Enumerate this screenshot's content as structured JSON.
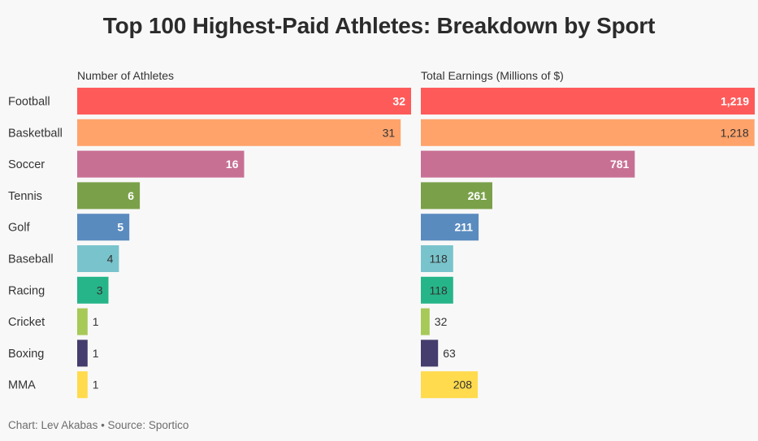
{
  "title": "Top 100 Highest-Paid Athletes: Breakdown by Sport",
  "footer": "Chart: Lev Akabas • Source: Sportico",
  "chart_data": [
    {
      "type": "bar",
      "orientation": "horizontal",
      "title": "Number of Athletes",
      "categories": [
        "Football",
        "Basketball",
        "Soccer",
        "Tennis",
        "Golf",
        "Baseball",
        "Racing",
        "Cricket",
        "Boxing",
        "MMA"
      ],
      "values": [
        32,
        31,
        16,
        6,
        5,
        4,
        3,
        1,
        1,
        1
      ],
      "value_labels": [
        "32",
        "31",
        "16",
        "6",
        "5",
        "4",
        "3",
        "1",
        "1",
        "1"
      ],
      "xlim": [
        0,
        32
      ],
      "grid": false
    },
    {
      "type": "bar",
      "orientation": "horizontal",
      "title": "Total Earnings (Millions of $)",
      "categories": [
        "Football",
        "Basketball",
        "Soccer",
        "Tennis",
        "Golf",
        "Baseball",
        "Racing",
        "Cricket",
        "Boxing",
        "MMA"
      ],
      "values": [
        1219,
        1218,
        781,
        261,
        211,
        118,
        118,
        32,
        63,
        208
      ],
      "value_labels": [
        "1,219",
        "1,218",
        "781",
        "261",
        "211",
        "118",
        "118",
        "32",
        "63",
        "208"
      ],
      "xlim": [
        0,
        1219
      ],
      "grid": false
    }
  ],
  "colors": [
    "#ff5a5a",
    "#ffa36b",
    "#c87094",
    "#7aa14a",
    "#5a8bbf",
    "#79c4cc",
    "#26b589",
    "#a7c957",
    "#453d6d",
    "#ffdb4d"
  ],
  "label_styles": [
    "inside-white",
    "inside-dark",
    "inside-white",
    "inside-white",
    "inside-white",
    "inside-dark",
    "inside-dark",
    "outside",
    "outside",
    "outside"
  ],
  "label_styles_right": [
    "inside-white",
    "inside-dark",
    "inside-white",
    "inside-white",
    "inside-white",
    "inside-dark",
    "inside-dark",
    "outside",
    "outside",
    "inside-dark"
  ]
}
